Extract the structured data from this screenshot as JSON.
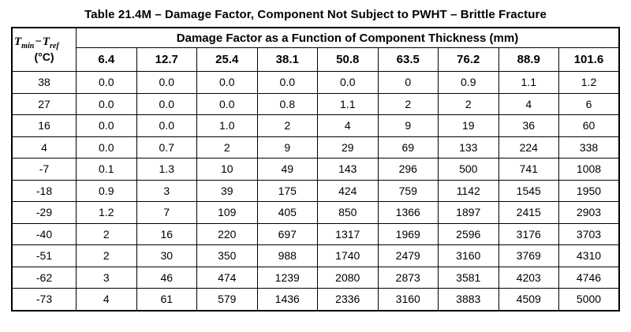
{
  "title": "Table 21.4M – Damage Factor, Component Not Subject to PWHT – Brittle Fracture",
  "table": {
    "corner": {
      "t1": "T",
      "sub1": "min",
      "minus": "−",
      "t2": "T",
      "sub2": "ref",
      "unit": "(°C)"
    },
    "span_header": "Damage Factor as a Function of Component Thickness (mm)",
    "thickness_headers": [
      "6.4",
      "12.7",
      "25.4",
      "38.1",
      "50.8",
      "63.5",
      "76.2",
      "88.9",
      "101.6"
    ],
    "rows": [
      {
        "temp": "38",
        "values": [
          "0.0",
          "0.0",
          "0.0",
          "0.0",
          "0.0",
          "0",
          "0.9",
          "1.1",
          "1.2"
        ]
      },
      {
        "temp": "27",
        "values": [
          "0.0",
          "0.0",
          "0.0",
          "0.8",
          "1.1",
          "2",
          "2",
          "4",
          "6"
        ]
      },
      {
        "temp": "16",
        "values": [
          "0.0",
          "0.0",
          "1.0",
          "2",
          "4",
          "9",
          "19",
          "36",
          "60"
        ]
      },
      {
        "temp": "4",
        "values": [
          "0.0",
          "0.7",
          "2",
          "9",
          "29",
          "69",
          "133",
          "224",
          "338"
        ]
      },
      {
        "temp": "-7",
        "values": [
          "0.1",
          "1.3",
          "10",
          "49",
          "143",
          "296",
          "500",
          "741",
          "1008"
        ]
      },
      {
        "temp": "-18",
        "values": [
          "0.9",
          "3",
          "39",
          "175",
          "424",
          "759",
          "1142",
          "1545",
          "1950"
        ]
      },
      {
        "temp": "-29",
        "values": [
          "1.2",
          "7",
          "109",
          "405",
          "850",
          "1366",
          "1897",
          "2415",
          "2903"
        ]
      },
      {
        "temp": "-40",
        "values": [
          "2",
          "16",
          "220",
          "697",
          "1317",
          "1969",
          "2596",
          "3176",
          "3703"
        ]
      },
      {
        "temp": "-51",
        "values": [
          "2",
          "30",
          "350",
          "988",
          "1740",
          "2479",
          "3160",
          "3769",
          "4310"
        ]
      },
      {
        "temp": "-62",
        "values": [
          "3",
          "46",
          "474",
          "1239",
          "2080",
          "2873",
          "3581",
          "4203",
          "4746"
        ]
      },
      {
        "temp": "-73",
        "values": [
          "4",
          "61",
          "579",
          "1436",
          "2336",
          "3160",
          "3883",
          "4509",
          "5000"
        ]
      }
    ]
  }
}
